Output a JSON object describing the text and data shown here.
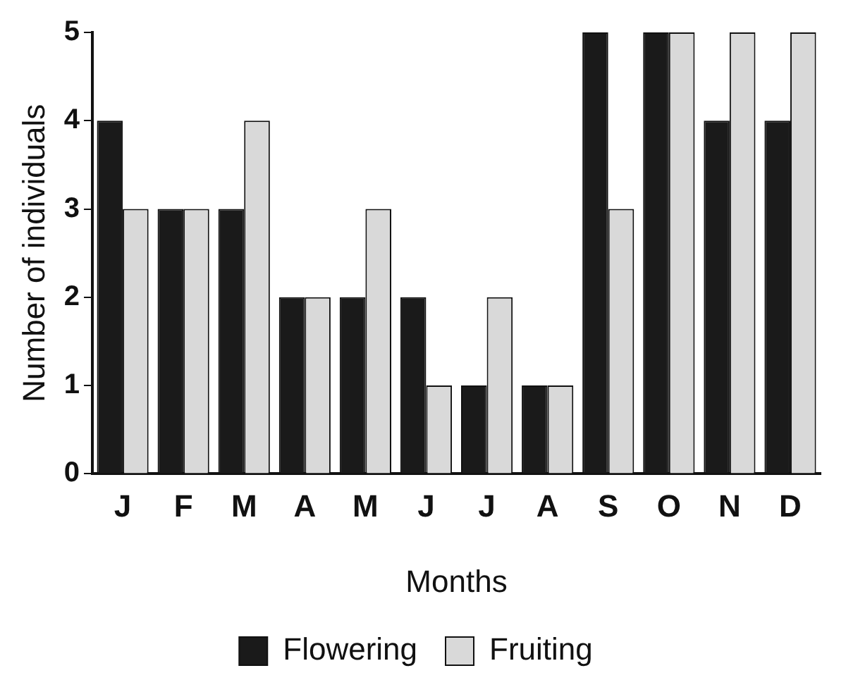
{
  "chart_data": {
    "type": "bar",
    "xlabel": "Months",
    "ylabel": "Number of individuals",
    "categories": [
      "J",
      "F",
      "M",
      "A",
      "M",
      "J",
      "J",
      "A",
      "S",
      "O",
      "N",
      "D"
    ],
    "series": [
      {
        "name": "Flowering",
        "color": "#1a1a1a",
        "values": [
          4,
          3,
          3,
          2,
          2,
          2,
          1,
          1,
          5,
          5,
          4,
          4
        ]
      },
      {
        "name": "Fruiting",
        "color": "#d9d9d9",
        "values": [
          3,
          3,
          4,
          2,
          3,
          1,
          2,
          1,
          3,
          5,
          5,
          5
        ]
      }
    ],
    "ylim": [
      0,
      5
    ],
    "yticks": [
      0,
      1,
      2,
      3,
      4,
      5
    ],
    "grid": false,
    "legend": "bottom"
  }
}
